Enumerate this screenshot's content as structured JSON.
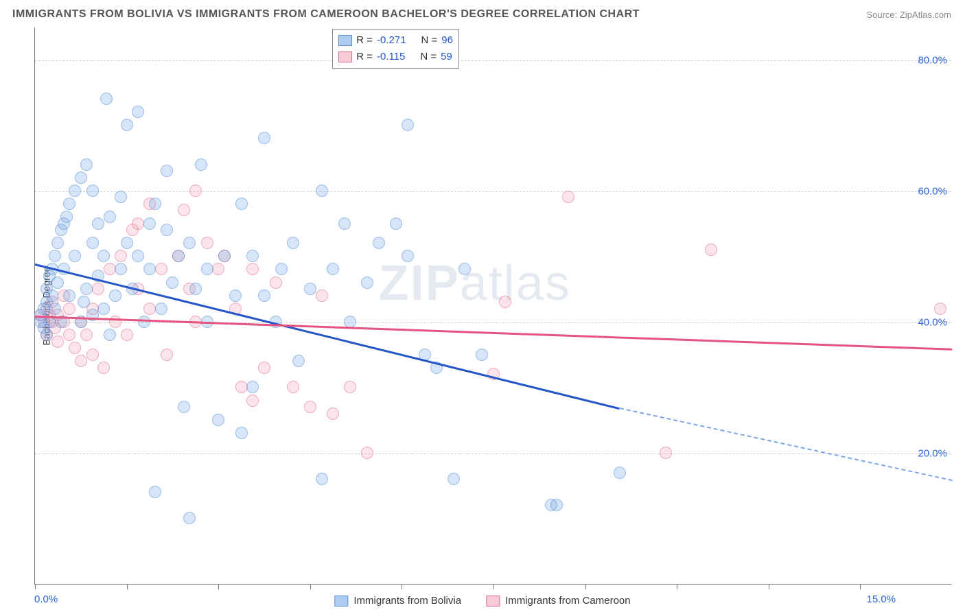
{
  "title": "IMMIGRANTS FROM BOLIVIA VS IMMIGRANTS FROM CAMEROON BACHELOR'S DEGREE CORRELATION CHART",
  "source_label": "Source: ",
  "source_name": "ZipAtlas.com",
  "ylabel": "Bachelor's Degree",
  "watermark_a": "ZIP",
  "watermark_b": "atlas",
  "chart": {
    "type": "scatter",
    "xlim": [
      0,
      16
    ],
    "ylim": [
      0,
      85
    ],
    "background_color": "#ffffff",
    "grid_color": "#d0d0d0",
    "axis_color": "#777777",
    "y_gridlines": [
      20,
      40,
      60,
      80
    ],
    "y_ticklabels": [
      "20.0%",
      "40.0%",
      "60.0%",
      "80.0%"
    ],
    "x_ticks_minor": [
      0,
      1.6,
      3.2,
      4.8,
      6.4,
      8.0,
      9.6,
      11.2,
      12.8,
      14.4
    ],
    "x_ticklabels": [
      {
        "pos": 0,
        "text": "0.0%"
      },
      {
        "pos": 15,
        "text": "15.0%"
      }
    ],
    "tick_label_color": "#2962d9",
    "tick_label_fontsize": 15
  },
  "legend_top": {
    "rows": [
      {
        "swatch": "blue",
        "r_label": "R =",
        "r_val": "-0.271",
        "n_label": "N =",
        "n_val": "96"
      },
      {
        "swatch": "pink",
        "r_label": "R =",
        "r_val": "-0.115",
        "n_label": "N =",
        "n_val": "59"
      }
    ]
  },
  "legend_bottom": {
    "items": [
      {
        "swatch": "blue",
        "label": "Immigrants from Bolivia"
      },
      {
        "swatch": "pink",
        "label": "Immigrants from Cameroon"
      }
    ]
  },
  "series": {
    "bolivia": {
      "color_fill": "rgba(120,170,230,0.5)",
      "color_stroke": "#5a8fd6",
      "marker_radius": 9,
      "trend": {
        "x0": 0,
        "y0": 49,
        "x_solid_end": 10.2,
        "y_solid_end": 27,
        "x_dash_end": 16,
        "y_dash_end": 16,
        "color": "#2456c7",
        "width": 3
      },
      "points": [
        [
          0.1,
          40
        ],
        [
          0.1,
          41
        ],
        [
          0.15,
          42
        ],
        [
          0.15,
          39
        ],
        [
          0.2,
          45
        ],
        [
          0.2,
          38
        ],
        [
          0.2,
          43
        ],
        [
          0.25,
          47
        ],
        [
          0.25,
          40
        ],
        [
          0.3,
          48
        ],
        [
          0.3,
          44
        ],
        [
          0.35,
          50
        ],
        [
          0.35,
          42
        ],
        [
          0.4,
          52
        ],
        [
          0.4,
          46
        ],
        [
          0.45,
          54
        ],
        [
          0.45,
          40
        ],
        [
          0.5,
          55
        ],
        [
          0.5,
          48
        ],
        [
          0.55,
          56
        ],
        [
          0.6,
          58
        ],
        [
          0.6,
          44
        ],
        [
          0.7,
          60
        ],
        [
          0.7,
          50
        ],
        [
          0.8,
          62
        ],
        [
          0.8,
          40
        ],
        [
          0.85,
          43
        ],
        [
          0.9,
          45
        ],
        [
          0.9,
          64
        ],
        [
          1.0,
          52
        ],
        [
          1.0,
          41
        ],
        [
          1.0,
          60
        ],
        [
          1.1,
          47
        ],
        [
          1.1,
          55
        ],
        [
          1.2,
          50
        ],
        [
          1.2,
          42
        ],
        [
          1.25,
          74
        ],
        [
          1.3,
          56
        ],
        [
          1.3,
          38
        ],
        [
          1.4,
          44
        ],
        [
          1.5,
          48
        ],
        [
          1.5,
          59
        ],
        [
          1.6,
          52
        ],
        [
          1.6,
          70
        ],
        [
          1.7,
          45
        ],
        [
          1.8,
          72
        ],
        [
          1.8,
          50
        ],
        [
          1.9,
          40
        ],
        [
          2.0,
          55
        ],
        [
          2.0,
          48
        ],
        [
          2.1,
          58
        ],
        [
          2.1,
          14
        ],
        [
          2.2,
          42
        ],
        [
          2.3,
          54
        ],
        [
          2.3,
          63
        ],
        [
          2.4,
          46
        ],
        [
          2.5,
          50
        ],
        [
          2.6,
          27
        ],
        [
          2.7,
          52
        ],
        [
          2.7,
          10
        ],
        [
          2.8,
          45
        ],
        [
          2.9,
          64
        ],
        [
          3.0,
          40
        ],
        [
          3.0,
          48
        ],
        [
          3.2,
          25
        ],
        [
          3.3,
          50
        ],
        [
          3.5,
          44
        ],
        [
          3.6,
          23
        ],
        [
          3.6,
          58
        ],
        [
          3.8,
          50
        ],
        [
          3.8,
          30
        ],
        [
          4.0,
          44
        ],
        [
          4.0,
          68
        ],
        [
          4.2,
          40
        ],
        [
          4.3,
          48
        ],
        [
          4.5,
          52
        ],
        [
          4.6,
          34
        ],
        [
          4.8,
          45
        ],
        [
          5.0,
          60
        ],
        [
          5.0,
          16
        ],
        [
          5.2,
          48
        ],
        [
          5.4,
          55
        ],
        [
          5.5,
          40
        ],
        [
          5.8,
          46
        ],
        [
          6.0,
          52
        ],
        [
          6.3,
          55
        ],
        [
          6.5,
          70
        ],
        [
          6.5,
          50
        ],
        [
          6.8,
          35
        ],
        [
          7.0,
          33
        ],
        [
          7.3,
          16
        ],
        [
          7.5,
          48
        ],
        [
          7.8,
          35
        ],
        [
          9.0,
          12
        ],
        [
          9.1,
          12
        ],
        [
          10.2,
          17
        ]
      ]
    },
    "cameroon": {
      "color_fill": "rgba(240,160,180,0.45)",
      "color_stroke": "#e07090",
      "marker_radius": 9,
      "trend": {
        "x0": 0,
        "y0": 41,
        "x1": 16,
        "y1": 36,
        "color": "#e6537e",
        "width": 3
      },
      "points": [
        [
          0.1,
          41
        ],
        [
          0.15,
          40
        ],
        [
          0.2,
          42
        ],
        [
          0.2,
          38
        ],
        [
          0.25,
          41
        ],
        [
          0.3,
          40
        ],
        [
          0.3,
          43
        ],
        [
          0.35,
          39
        ],
        [
          0.4,
          41
        ],
        [
          0.4,
          37
        ],
        [
          0.5,
          40
        ],
        [
          0.5,
          44
        ],
        [
          0.6,
          38
        ],
        [
          0.6,
          42
        ],
        [
          0.7,
          36
        ],
        [
          0.8,
          40
        ],
        [
          0.8,
          34
        ],
        [
          0.9,
          38
        ],
        [
          1.0,
          35
        ],
        [
          1.0,
          42
        ],
        [
          1.1,
          45
        ],
        [
          1.2,
          33
        ],
        [
          1.3,
          48
        ],
        [
          1.4,
          40
        ],
        [
          1.5,
          50
        ],
        [
          1.6,
          38
        ],
        [
          1.7,
          54
        ],
        [
          1.8,
          45
        ],
        [
          1.8,
          55
        ],
        [
          2.0,
          58
        ],
        [
          2.0,
          42
        ],
        [
          2.2,
          48
        ],
        [
          2.3,
          35
        ],
        [
          2.5,
          50
        ],
        [
          2.6,
          57
        ],
        [
          2.7,
          45
        ],
        [
          2.8,
          40
        ],
        [
          2.8,
          60
        ],
        [
          3.0,
          52
        ],
        [
          3.2,
          48
        ],
        [
          3.3,
          50
        ],
        [
          3.5,
          42
        ],
        [
          3.6,
          30
        ],
        [
          3.8,
          28
        ],
        [
          3.8,
          48
        ],
        [
          4.0,
          33
        ],
        [
          4.2,
          46
        ],
        [
          4.5,
          30
        ],
        [
          4.8,
          27
        ],
        [
          5.0,
          44
        ],
        [
          5.2,
          26
        ],
        [
          5.5,
          30
        ],
        [
          5.8,
          20
        ],
        [
          8.0,
          32
        ],
        [
          8.2,
          43
        ],
        [
          9.3,
          59
        ],
        [
          11.0,
          20
        ],
        [
          11.8,
          51
        ],
        [
          15.8,
          42
        ]
      ]
    }
  }
}
